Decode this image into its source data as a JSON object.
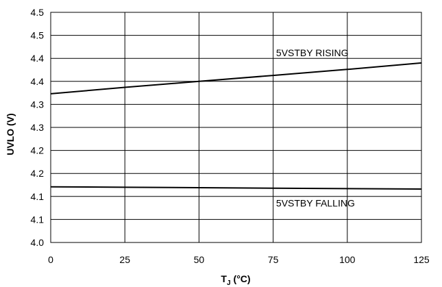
{
  "chart_data": {
    "type": "line",
    "xlabel": "T",
    "xlabel_sub": "J",
    "xlabel_unit": "(°C)",
    "ylabel": "UVLO (V)",
    "xlim": [
      0,
      125
    ],
    "ylim": [
      4.0,
      4.5
    ],
    "grid": true,
    "x_ticks": [
      0,
      25,
      50,
      75,
      100,
      125
    ],
    "x_tick_labels": [
      "0",
      "25",
      "50",
      "75",
      "100",
      "125"
    ],
    "y_ticks": [
      4.0,
      4.05,
      4.1,
      4.15,
      4.2,
      4.25,
      4.3,
      4.35,
      4.4,
      4.45,
      4.5
    ],
    "y_tick_labels": [
      "4.0",
      "4.1",
      "4.1",
      "4.2",
      "4.2",
      "4.3",
      "4.3",
      "4.4",
      "4.4",
      "4.5",
      "4.5"
    ],
    "series": [
      {
        "name": "5VSTBY RISING",
        "x": [
          0,
          25,
          50,
          75,
          100,
          125
        ],
        "y": [
          4.323,
          4.337,
          4.35,
          4.363,
          4.376,
          4.39
        ]
      },
      {
        "name": "5VSTBY FALLING",
        "x": [
          0,
          25,
          50,
          75,
          100,
          125
        ],
        "y": [
          4.121,
          4.12,
          4.119,
          4.118,
          4.117,
          4.116
        ]
      }
    ],
    "annotations": [
      {
        "text": "5VSTBY RISING",
        "x": 76,
        "y": 4.405
      },
      {
        "text": "5VSTBY FALLING",
        "x": 76,
        "y": 4.078
      }
    ]
  }
}
